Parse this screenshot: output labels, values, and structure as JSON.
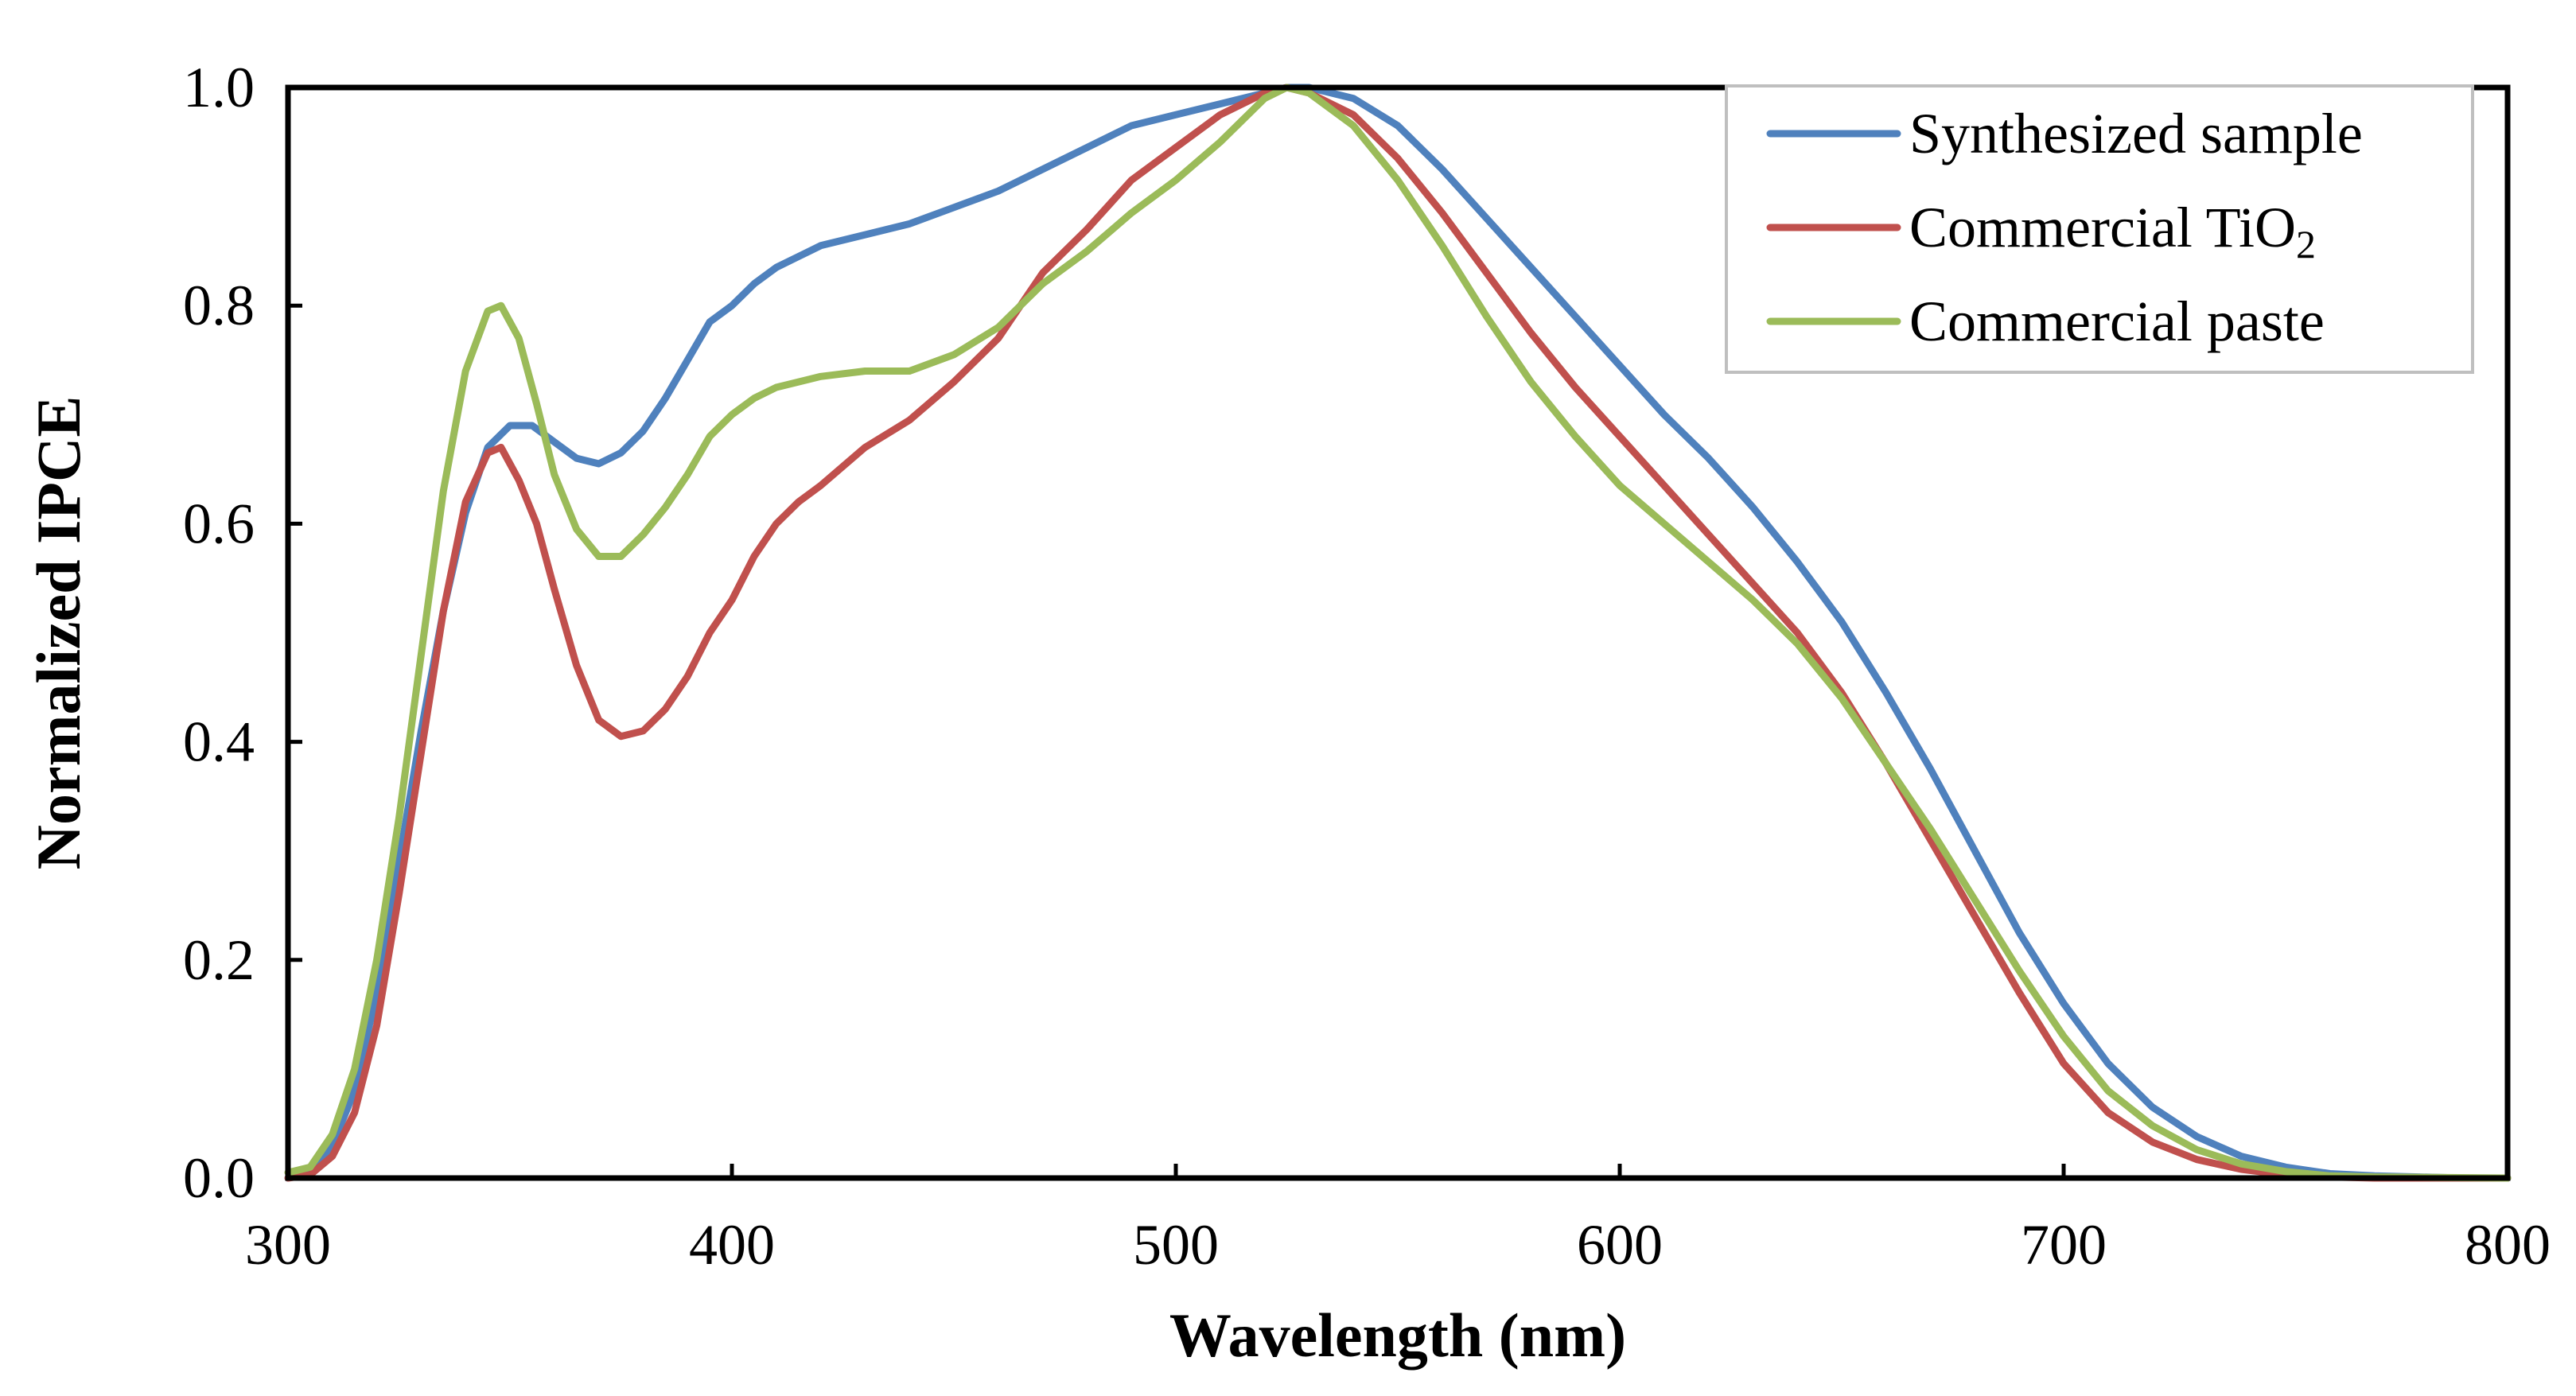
{
  "chart_data": {
    "type": "line",
    "title": "",
    "xlabel": "Wavelength (nm)",
    "ylabel": "Normalized IPCE",
    "xlim": [
      300,
      800
    ],
    "ylim": [
      0,
      1.0
    ],
    "xticks": [
      "300",
      "400",
      "500",
      "600",
      "700",
      "800"
    ],
    "xtick_values": [
      300,
      400,
      500,
      600,
      700,
      800
    ],
    "yticks": [
      "0.0",
      "0.2",
      "0.4",
      "0.6",
      "0.8",
      "1.0"
    ],
    "ytick_values": [
      0,
      0.2,
      0.4,
      0.6,
      0.8,
      1.0
    ],
    "grid": false,
    "legend_position": "top-right",
    "series": [
      {
        "name": "Synthesized sample",
        "legend_text": "Synthesized sample",
        "legend_sub": "",
        "color": "#4F81BD",
        "points": [
          [
            300,
            0
          ],
          [
            305,
            0.005
          ],
          [
            310,
            0.03
          ],
          [
            315,
            0.08
          ],
          [
            320,
            0.17
          ],
          [
            325,
            0.29
          ],
          [
            330,
            0.41
          ],
          [
            335,
            0.52
          ],
          [
            340,
            0.61
          ],
          [
            345,
            0.67
          ],
          [
            350,
            0.69
          ],
          [
            355,
            0.69
          ],
          [
            360,
            0.675
          ],
          [
            365,
            0.66
          ],
          [
            370,
            0.655
          ],
          [
            375,
            0.665
          ],
          [
            380,
            0.685
          ],
          [
            385,
            0.715
          ],
          [
            390,
            0.75
          ],
          [
            395,
            0.785
          ],
          [
            400,
            0.8
          ],
          [
            405,
            0.82
          ],
          [
            410,
            0.835
          ],
          [
            415,
            0.845
          ],
          [
            420,
            0.855
          ],
          [
            430,
            0.865
          ],
          [
            440,
            0.875
          ],
          [
            450,
            0.89
          ],
          [
            460,
            0.905
          ],
          [
            470,
            0.925
          ],
          [
            480,
            0.945
          ],
          [
            490,
            0.965
          ],
          [
            500,
            0.975
          ],
          [
            510,
            0.985
          ],
          [
            520,
            0.995
          ],
          [
            525,
            1.0
          ],
          [
            530,
            1.0
          ],
          [
            540,
            0.99
          ],
          [
            550,
            0.965
          ],
          [
            560,
            0.925
          ],
          [
            570,
            0.88
          ],
          [
            580,
            0.835
          ],
          [
            590,
            0.79
          ],
          [
            600,
            0.745
          ],
          [
            610,
            0.7
          ],
          [
            620,
            0.66
          ],
          [
            630,
            0.615
          ],
          [
            640,
            0.565
          ],
          [
            650,
            0.51
          ],
          [
            660,
            0.445
          ],
          [
            670,
            0.375
          ],
          [
            680,
            0.3
          ],
          [
            690,
            0.225
          ],
          [
            700,
            0.16
          ],
          [
            710,
            0.105
          ],
          [
            720,
            0.065
          ],
          [
            730,
            0.038
          ],
          [
            740,
            0.02
          ],
          [
            750,
            0.01
          ],
          [
            760,
            0.004
          ],
          [
            770,
            0.002
          ],
          [
            780,
            0.001
          ],
          [
            790,
            0
          ],
          [
            800,
            0
          ]
        ]
      },
      {
        "name": "Commercial TiO2",
        "legend_text": "Commercial TiO",
        "legend_sub": "2",
        "color": "#C0504D",
        "points": [
          [
            300,
            0
          ],
          [
            305,
            0.003
          ],
          [
            310,
            0.02
          ],
          [
            315,
            0.06
          ],
          [
            320,
            0.14
          ],
          [
            325,
            0.26
          ],
          [
            330,
            0.39
          ],
          [
            335,
            0.52
          ],
          [
            340,
            0.62
          ],
          [
            345,
            0.665
          ],
          [
            348,
            0.67
          ],
          [
            352,
            0.64
          ],
          [
            356,
            0.6
          ],
          [
            360,
            0.54
          ],
          [
            365,
            0.47
          ],
          [
            370,
            0.42
          ],
          [
            375,
            0.405
          ],
          [
            380,
            0.41
          ],
          [
            385,
            0.43
          ],
          [
            390,
            0.46
          ],
          [
            395,
            0.5
          ],
          [
            400,
            0.53
          ],
          [
            405,
            0.57
          ],
          [
            410,
            0.6
          ],
          [
            415,
            0.62
          ],
          [
            420,
            0.635
          ],
          [
            430,
            0.67
          ],
          [
            440,
            0.695
          ],
          [
            450,
            0.73
          ],
          [
            460,
            0.77
          ],
          [
            470,
            0.83
          ],
          [
            480,
            0.87
          ],
          [
            490,
            0.915
          ],
          [
            500,
            0.945
          ],
          [
            510,
            0.975
          ],
          [
            520,
            0.995
          ],
          [
            525,
            1.0
          ],
          [
            530,
            0.995
          ],
          [
            540,
            0.975
          ],
          [
            550,
            0.935
          ],
          [
            560,
            0.885
          ],
          [
            570,
            0.83
          ],
          [
            580,
            0.775
          ],
          [
            590,
            0.725
          ],
          [
            600,
            0.68
          ],
          [
            610,
            0.635
          ],
          [
            620,
            0.59
          ],
          [
            630,
            0.545
          ],
          [
            640,
            0.5
          ],
          [
            650,
            0.445
          ],
          [
            660,
            0.38
          ],
          [
            670,
            0.31
          ],
          [
            680,
            0.24
          ],
          [
            690,
            0.17
          ],
          [
            700,
            0.105
          ],
          [
            710,
            0.06
          ],
          [
            720,
            0.033
          ],
          [
            730,
            0.017
          ],
          [
            740,
            0.008
          ],
          [
            750,
            0.003
          ],
          [
            760,
            0.001
          ],
          [
            770,
            0
          ],
          [
            800,
            0
          ]
        ]
      },
      {
        "name": "Commercial paste",
        "legend_text": "Commercial paste",
        "legend_sub": "",
        "color": "#9BBB59",
        "points": [
          [
            300,
            0.005
          ],
          [
            305,
            0.01
          ],
          [
            310,
            0.04
          ],
          [
            315,
            0.1
          ],
          [
            320,
            0.2
          ],
          [
            325,
            0.33
          ],
          [
            330,
            0.48
          ],
          [
            335,
            0.63
          ],
          [
            340,
            0.74
          ],
          [
            345,
            0.795
          ],
          [
            348,
            0.8
          ],
          [
            352,
            0.77
          ],
          [
            356,
            0.71
          ],
          [
            360,
            0.645
          ],
          [
            365,
            0.595
          ],
          [
            370,
            0.57
          ],
          [
            375,
            0.57
          ],
          [
            380,
            0.59
          ],
          [
            385,
            0.615
          ],
          [
            390,
            0.645
          ],
          [
            395,
            0.68
          ],
          [
            400,
            0.7
          ],
          [
            405,
            0.715
          ],
          [
            410,
            0.725
          ],
          [
            420,
            0.735
          ],
          [
            430,
            0.74
          ],
          [
            440,
            0.74
          ],
          [
            450,
            0.755
          ],
          [
            460,
            0.78
          ],
          [
            470,
            0.82
          ],
          [
            480,
            0.85
          ],
          [
            490,
            0.885
          ],
          [
            500,
            0.915
          ],
          [
            510,
            0.95
          ],
          [
            520,
            0.99
          ],
          [
            525,
            1.0
          ],
          [
            530,
            0.995
          ],
          [
            540,
            0.965
          ],
          [
            550,
            0.915
          ],
          [
            560,
            0.855
          ],
          [
            570,
            0.79
          ],
          [
            580,
            0.73
          ],
          [
            590,
            0.68
          ],
          [
            600,
            0.635
          ],
          [
            610,
            0.6
          ],
          [
            620,
            0.565
          ],
          [
            630,
            0.53
          ],
          [
            640,
            0.49
          ],
          [
            650,
            0.44
          ],
          [
            660,
            0.38
          ],
          [
            670,
            0.32
          ],
          [
            680,
            0.255
          ],
          [
            690,
            0.19
          ],
          [
            700,
            0.13
          ],
          [
            710,
            0.08
          ],
          [
            720,
            0.048
          ],
          [
            730,
            0.026
          ],
          [
            740,
            0.013
          ],
          [
            750,
            0.006
          ],
          [
            760,
            0.002
          ],
          [
            770,
            0.001
          ],
          [
            800,
            0
          ]
        ]
      }
    ]
  }
}
